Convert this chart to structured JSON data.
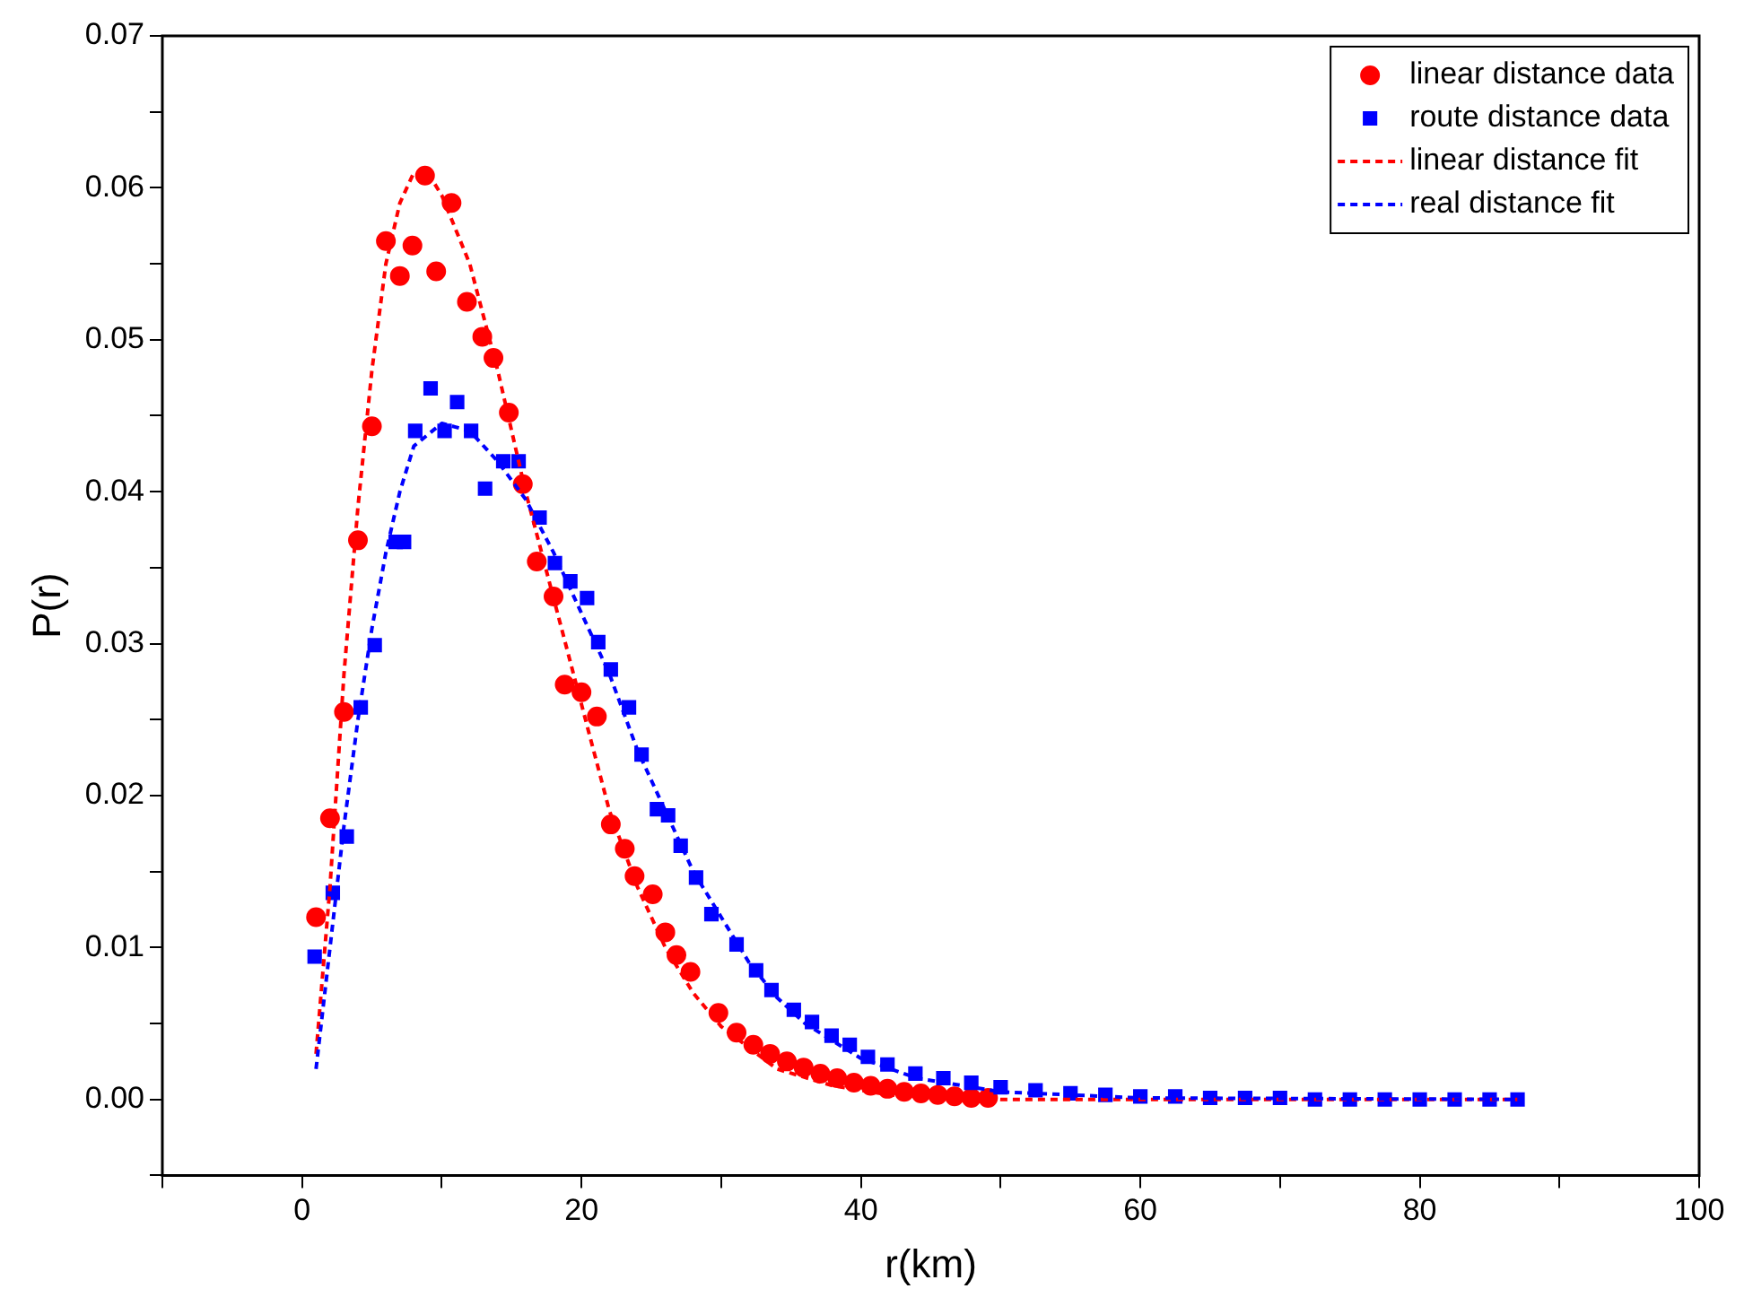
{
  "chart_data": {
    "type": "scatter",
    "xlabel": "r(km)",
    "ylabel": "P(r)",
    "xlim": [
      -10,
      100
    ],
    "ylim": [
      -0.005,
      0.07
    ],
    "xticks": [
      {
        "value": -10,
        "label": null
      },
      0,
      {
        "value": 10,
        "label": null
      },
      20,
      {
        "value": 30,
        "label": null
      },
      40,
      {
        "value": 50,
        "label": null
      },
      60,
      {
        "value": 70,
        "label": null
      },
      80,
      {
        "value": 90,
        "label": null
      },
      100
    ],
    "yticks": [
      {
        "value": -0.005,
        "label": null
      },
      {
        "value": 0,
        "label": "0.00"
      },
      {
        "value": 0.005,
        "label": null
      },
      {
        "value": 0.01,
        "label": "0.01"
      },
      {
        "value": 0.015,
        "label": null
      },
      {
        "value": 0.02,
        "label": "0.02"
      },
      {
        "value": 0.025,
        "label": null
      },
      {
        "value": 0.03,
        "label": "0.03"
      },
      {
        "value": 0.035,
        "label": null
      },
      {
        "value": 0.04,
        "label": "0.04"
      },
      {
        "value": 0.045,
        "label": null
      },
      {
        "value": 0.05,
        "label": "0.05"
      },
      {
        "value": 0.055,
        "label": null
      },
      {
        "value": 0.06,
        "label": "0.06"
      },
      {
        "value": 0.065,
        "label": null
      },
      {
        "value": 0.07,
        "label": "0.07"
      }
    ],
    "grid": false,
    "legend": "top right",
    "series": [
      {
        "name": "linear distance data",
        "marker": "circle",
        "color": "#ff0000",
        "x": [
          1.0,
          2.0,
          3.0,
          4.0,
          5.0,
          6.0,
          7.0,
          7.9,
          8.8,
          9.6,
          10.7,
          11.8,
          12.9,
          13.7,
          14.8,
          15.8,
          16.8,
          18.0,
          18.8,
          20.0,
          21.1,
          22.1,
          23.1,
          23.8,
          25.1,
          26.0,
          26.8,
          27.8,
          29.8,
          31.1,
          32.3,
          33.5,
          34.7,
          35.9,
          37.1,
          38.3,
          39.5,
          40.7,
          41.9,
          43.1,
          44.3,
          45.5,
          46.7,
          47.9,
          49.1
        ],
        "values": [
          0.012,
          0.0185,
          0.0255,
          0.0368,
          0.0443,
          0.0565,
          0.0542,
          0.0562,
          0.0608,
          0.0545,
          0.059,
          0.0525,
          0.0502,
          0.0488,
          0.0452,
          0.0405,
          0.0354,
          0.0331,
          0.0273,
          0.0268,
          0.0252,
          0.0181,
          0.0165,
          0.0147,
          0.0135,
          0.011,
          0.0095,
          0.0084,
          0.0057,
          0.0044,
          0.0036,
          0.003,
          0.0025,
          0.0021,
          0.0017,
          0.0014,
          0.0011,
          0.0009,
          0.0007,
          0.0005,
          0.0004,
          0.0003,
          0.0002,
          0.0001,
          0.0001
        ]
      },
      {
        "name": "route distance data",
        "marker": "square",
        "color": "#0000ff",
        "x": [
          0.9,
          2.2,
          3.2,
          4.2,
          5.2,
          6.7,
          7.3,
          8.1,
          9.2,
          10.2,
          11.1,
          12.1,
          13.1,
          14.4,
          15.5,
          17.0,
          18.1,
          19.2,
          20.4,
          21.2,
          22.1,
          23.4,
          24.3,
          25.4,
          26.2,
          27.1,
          28.2,
          29.3,
          31.1,
          32.5,
          33.6,
          35.2,
          36.5,
          37.9,
          39.2,
          40.5,
          41.9,
          43.9,
          45.9,
          47.9,
          50.0,
          52.5,
          55.0,
          57.5,
          60.0,
          62.5,
          65.0,
          67.5,
          70.0,
          72.5,
          75.0,
          77.5,
          80.0,
          82.5,
          85.0,
          87.0
        ],
        "values": [
          0.0094,
          0.0136,
          0.0173,
          0.0258,
          0.0299,
          0.0367,
          0.0367,
          0.044,
          0.0468,
          0.044,
          0.0459,
          0.044,
          0.0402,
          0.042,
          0.042,
          0.0383,
          0.0353,
          0.0341,
          0.033,
          0.0301,
          0.0283,
          0.0258,
          0.0227,
          0.0191,
          0.0187,
          0.0167,
          0.0146,
          0.0122,
          0.0102,
          0.0085,
          0.0072,
          0.0059,
          0.0051,
          0.0042,
          0.0036,
          0.0028,
          0.0023,
          0.0017,
          0.0014,
          0.0011,
          0.0008,
          0.0006,
          0.0004,
          0.0003,
          0.0002,
          0.0002,
          0.0001,
          0.0001,
          0.0001,
          0,
          0,
          0,
          0,
          0,
          0,
          0
        ]
      },
      {
        "name": "linear distance fit",
        "type": "line",
        "marker": "none",
        "line_style": "dashed",
        "color": "#ff0000",
        "x": [
          1,
          2,
          3,
          4,
          5,
          6,
          7,
          8,
          9,
          10,
          12,
          14,
          16,
          18,
          20,
          22,
          24,
          26,
          28,
          30,
          34,
          38,
          42,
          50,
          87
        ],
        "values": [
          0.003,
          0.014,
          0.028,
          0.039,
          0.048,
          0.055,
          0.059,
          0.061,
          0.061,
          0.0595,
          0.055,
          0.048,
          0.04,
          0.033,
          0.026,
          0.019,
          0.014,
          0.01,
          0.007,
          0.0048,
          0.002,
          0.0009,
          0.0003,
          0,
          0
        ]
      },
      {
        "name": "real distance fit",
        "type": "line",
        "marker": "none",
        "line_style": "dashed",
        "color": "#0000ff",
        "x": [
          1,
          2,
          3,
          4,
          5,
          6,
          7,
          8,
          10,
          12,
          14,
          16,
          18,
          20,
          22,
          24,
          26,
          28,
          30,
          32,
          34,
          36,
          40,
          44,
          50,
          60,
          87
        ],
        "values": [
          0.002,
          0.01,
          0.018,
          0.025,
          0.031,
          0.036,
          0.04,
          0.043,
          0.0445,
          0.044,
          0.042,
          0.0395,
          0.036,
          0.032,
          0.028,
          0.023,
          0.019,
          0.015,
          0.012,
          0.009,
          0.0067,
          0.005,
          0.0027,
          0.0014,
          0.0005,
          0.0001,
          0
        ]
      }
    ]
  }
}
